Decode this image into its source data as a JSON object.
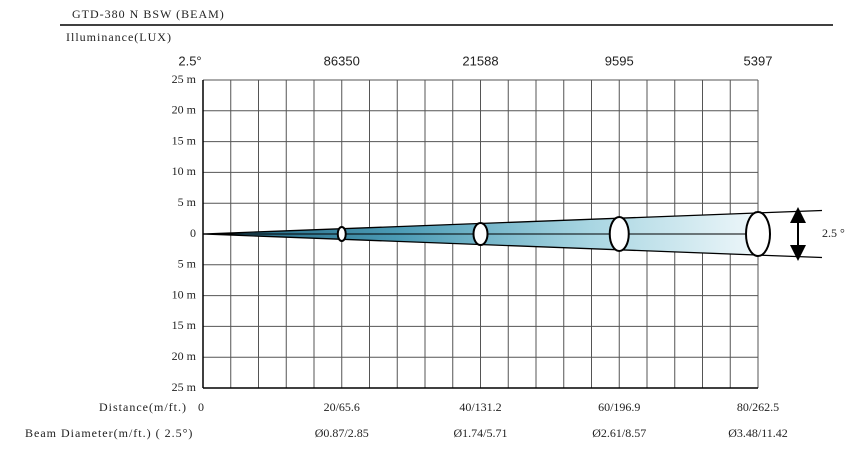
{
  "header": {
    "title": "GTD-380 N BSW  (BEAM)",
    "subtitle": "Illuminance(LUX)"
  },
  "beam_angle_label": "2.5°",
  "side_angle_label": "2.5 °",
  "illuminance": [
    "86350",
    "21588",
    "9595",
    "5397"
  ],
  "y_labels": [
    "25 m",
    "20 m",
    "15 m",
    "10 m",
    "5 m",
    "0",
    "5 m",
    "10 m",
    "15 m",
    "20 m",
    "25 m"
  ],
  "distance": {
    "label": "Distance(m/ft.)",
    "start": "0",
    "values": [
      "20/65.6",
      "40/131.2",
      "60/196.9",
      "80/262.5"
    ]
  },
  "beam_diameter": {
    "label": "Beam Diameter(m/ft.) ( 2.5°)",
    "values": [
      "Ø0.87/2.85",
      "Ø1.74/5.71",
      "Ø2.61/8.57",
      "Ø3.48/11.42"
    ]
  }
}
